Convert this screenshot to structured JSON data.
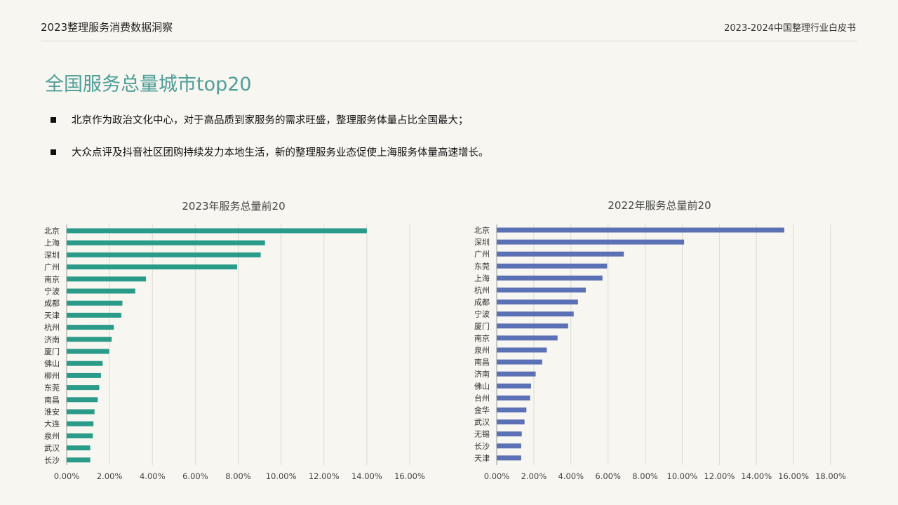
{
  "header": {
    "left_title": "2023整理服务消费数据洞察",
    "right_title": "2023-2024中国整理行业白皮书"
  },
  "page": {
    "title": "全国服务总量城市top20",
    "bullets": [
      "北京作为政治文化中心，对于高品质到家服务的需求旺盛，整理服务体量占比全国最大；",
      "大众点评及抖音社区团购持续发力本地生活，新的整理服务业态促使上海服务体量高速增长。"
    ]
  },
  "colors": {
    "accent_title": "#4f9e98",
    "bar_2023": "#2a9b89",
    "bar_2022": "#5b70b5",
    "grid": "#dddbd4"
  },
  "chart_data": [
    {
      "type": "bar",
      "orientation": "horizontal",
      "title": "2023年服务总量前20",
      "categories": [
        "北京",
        "上海",
        "深圳",
        "广州",
        "南京",
        "宁波",
        "成都",
        "天津",
        "杭州",
        "济南",
        "厦门",
        "佛山",
        "柳州",
        "东莞",
        "南昌",
        "淮安",
        "大连",
        "泉州",
        "武汉",
        "长沙"
      ],
      "values": [
        14.0,
        9.25,
        9.05,
        7.95,
        3.7,
        3.2,
        2.6,
        2.55,
        2.2,
        2.1,
        1.98,
        1.68,
        1.6,
        1.52,
        1.45,
        1.3,
        1.25,
        1.22,
        1.1,
        1.1
      ],
      "unit": "%",
      "xlim": [
        0,
        16
      ],
      "xticks": [
        "0.00%",
        "2.00%",
        "4.00%",
        "6.00%",
        "8.00%",
        "10.00%",
        "12.00%",
        "14.00%",
        "16.00%"
      ],
      "grid": true
    },
    {
      "type": "bar",
      "orientation": "horizontal",
      "title": "2022年服务总量前20",
      "categories": [
        "北京",
        "深圳",
        "广州",
        "东莞",
        "上海",
        "杭州",
        "成都",
        "宁波",
        "厦门",
        "南京",
        "泉州",
        "南昌",
        "济南",
        "佛山",
        "台州",
        "金华",
        "武汉",
        "无锡",
        "长沙",
        "天津"
      ],
      "values": [
        15.5,
        10.1,
        6.85,
        5.95,
        5.7,
        4.8,
        4.38,
        4.15,
        3.85,
        3.28,
        2.7,
        2.45,
        2.1,
        1.85,
        1.8,
        1.6,
        1.5,
        1.35,
        1.32,
        1.32
      ],
      "unit": "%",
      "xlim": [
        0,
        18
      ],
      "xticks": [
        "0.00%",
        "2.00%",
        "4.00%",
        "6.00%",
        "8.00%",
        "10.00%",
        "12.00%",
        "14.00%",
        "16.00%",
        "18.00%"
      ],
      "grid": true
    }
  ]
}
